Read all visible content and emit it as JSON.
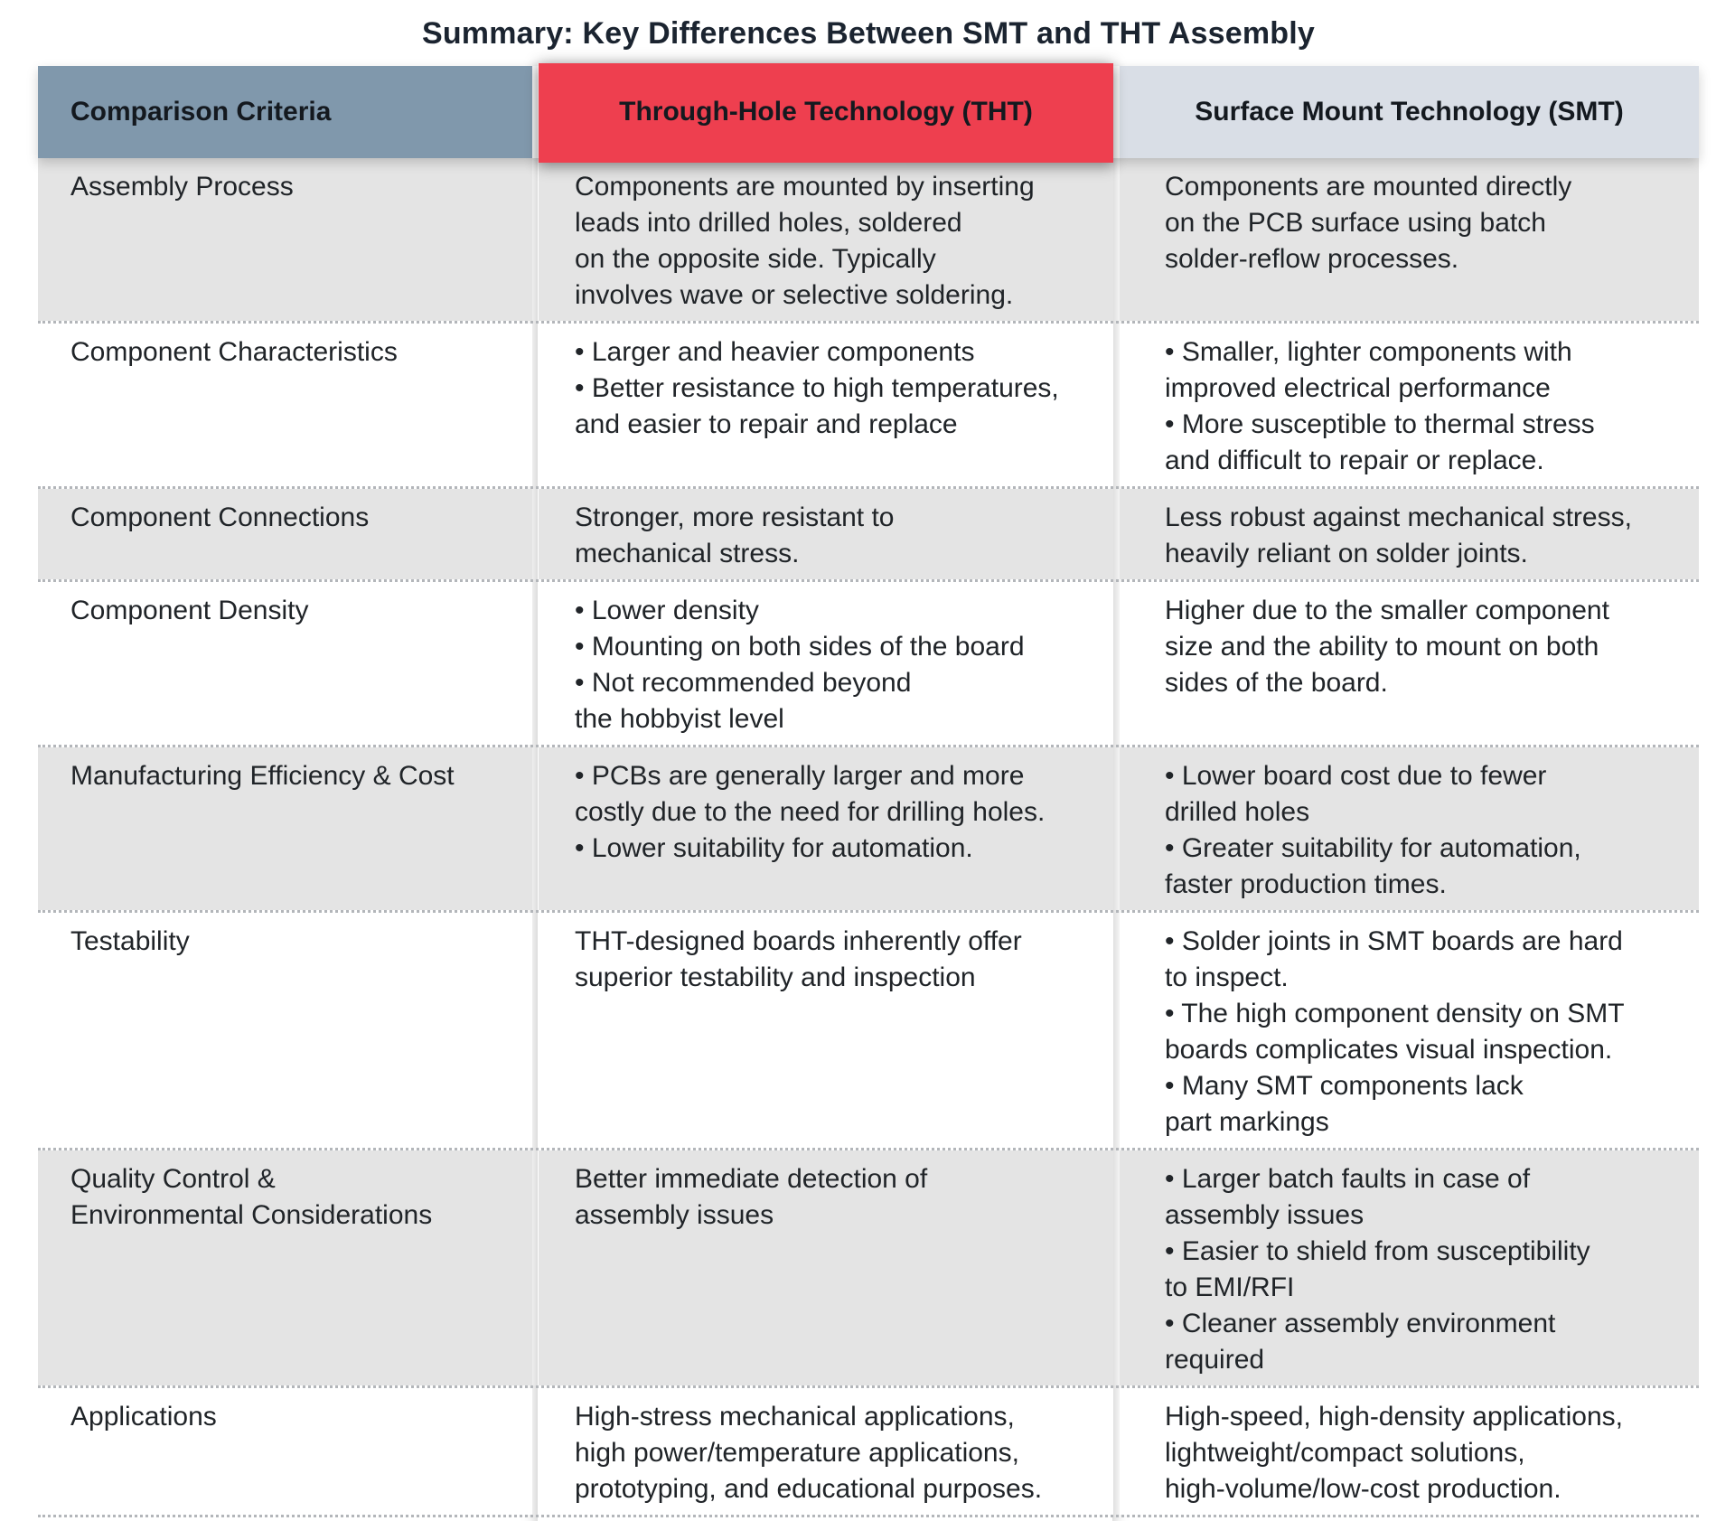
{
  "title": "Summary: Key Differences Between SMT and THT Assembly",
  "colors": {
    "criteria_header_bg": "#8098AC",
    "tht_header_bg": "#EE3F4F",
    "smt_header_bg": "#D9DEE6",
    "row_stripe_gray": "#E4E4E4",
    "header_text": "#14191F",
    "body_text": "#202428"
  },
  "table": {
    "columns": [
      {
        "id": "criteria",
        "label": "Comparison Criteria",
        "bg": "#8098AC"
      },
      {
        "id": "tht",
        "label": "Through-Hole Technology (THT)",
        "bg": "#EE3F4F"
      },
      {
        "id": "smt",
        "label": "Surface Mount Technology (SMT)",
        "bg": "#D9DEE6"
      }
    ],
    "rows": [
      {
        "criteria": "Assembly Process",
        "tht": [
          {
            "bullet": false,
            "text": "Components are mounted by inserting\nleads into drilled holes, soldered\non the opposite side. Typically\ninvolves wave or selective soldering."
          }
        ],
        "smt": [
          {
            "bullet": false,
            "text": "Components are mounted directly\non the PCB surface using batch\nsolder-reflow processes."
          }
        ]
      },
      {
        "criteria": "Component Characteristics",
        "tht": [
          {
            "bullet": true,
            "text": "Larger and heavier components"
          },
          {
            "bullet": true,
            "text": "Better resistance to high temperatures,\nand easier to repair and replace"
          }
        ],
        "smt": [
          {
            "bullet": true,
            "text": "Smaller, lighter components with\nimproved electrical performance"
          },
          {
            "bullet": true,
            "text": "More susceptible to thermal stress\nand difficult to repair or replace."
          }
        ]
      },
      {
        "criteria": "Component Connections",
        "tht": [
          {
            "bullet": false,
            "text": "Stronger, more resistant to\nmechanical stress."
          }
        ],
        "smt": [
          {
            "bullet": false,
            "text": "Less robust against mechanical stress,\nheavily reliant on solder joints."
          }
        ]
      },
      {
        "criteria": "Component Density",
        "tht": [
          {
            "bullet": true,
            "text": "Lower density"
          },
          {
            "bullet": true,
            "text": "Mounting on both sides of the board"
          },
          {
            "bullet": true,
            "text": "Not recommended beyond\nthe hobbyist level"
          }
        ],
        "smt": [
          {
            "bullet": false,
            "text": "Higher due to the smaller component\nsize and the ability to mount on both\nsides of the board."
          }
        ]
      },
      {
        "criteria": "Manufacturing Efficiency & Cost",
        "tht": [
          {
            "bullet": true,
            "text": "PCBs are generally larger and more\ncostly due to the need for drilling holes."
          },
          {
            "bullet": true,
            "text": "Lower suitability for automation."
          }
        ],
        "smt": [
          {
            "bullet": true,
            "text": "Lower board cost due to fewer\ndrilled holes"
          },
          {
            "bullet": true,
            "text": "Greater suitability for automation,\nfaster production times."
          }
        ]
      },
      {
        "criteria": "Testability",
        "tht": [
          {
            "bullet": false,
            "text": "THT-designed boards inherently offer\nsuperior testability and inspection"
          }
        ],
        "smt": [
          {
            "bullet": true,
            "text": "Solder joints in SMT boards are hard\nto inspect."
          },
          {
            "bullet": true,
            "text": "The high component density on SMT\nboards complicates visual inspection."
          },
          {
            "bullet": true,
            "text": "Many SMT components lack\npart markings"
          }
        ]
      },
      {
        "criteria": "Quality Control &\nEnvironmental Considerations",
        "tht": [
          {
            "bullet": false,
            "text": "Better immediate detection of\nassembly issues"
          }
        ],
        "smt": [
          {
            "bullet": true,
            "text": "Larger batch faults in case of\nassembly issues"
          },
          {
            "bullet": true,
            "text": "Easier to shield from susceptibility\nto EMI/RFI"
          },
          {
            "bullet": true,
            "text": "Cleaner assembly environment\nrequired"
          }
        ]
      },
      {
        "criteria": "Applications",
        "tht": [
          {
            "bullet": false,
            "text": "High-stress mechanical applications,\nhigh power/temperature applications,\nprototyping, and educational purposes."
          }
        ],
        "smt": [
          {
            "bullet": false,
            "text": "High-speed, high-density applications,\nlightweight/compact solutions,\nhigh-volume/low-cost production."
          }
        ]
      }
    ]
  }
}
